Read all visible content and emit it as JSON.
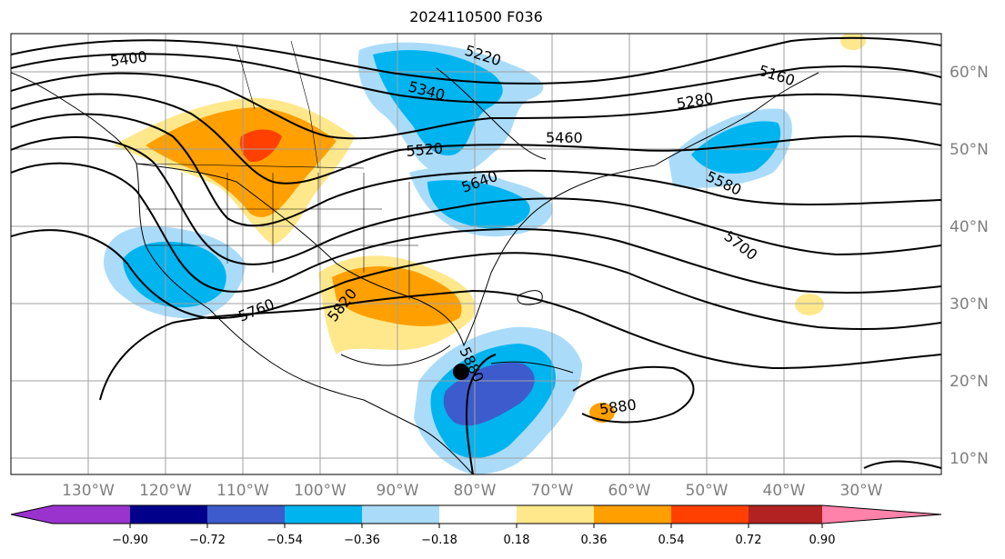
{
  "title": "2024110500 F036",
  "longitude_labels": [
    "130°W",
    "120°W",
    "110°W",
    "100°W",
    "90°W",
    "80°W",
    "70°W",
    "60°W",
    "50°W",
    "40°W",
    "30°W"
  ],
  "latitude_labels": [
    "60°N",
    "50°N",
    "40°N",
    "30°N",
    "20°N",
    "10°N"
  ],
  "contour_labels": [
    "5400",
    "5220",
    "5160",
    "5340",
    "5280",
    "5520",
    "5460",
    "5640",
    "5580",
    "5700",
    "5760",
    "5820",
    "5880",
    "5880"
  ],
  "colorbar": {
    "ticks": [
      "−0.90",
      "−0.72",
      "−0.54",
      "−0.36",
      "−0.18",
      "0.18",
      "0.36",
      "0.54",
      "0.72",
      "0.90"
    ],
    "colors": [
      "#9a32cd",
      "#00008b",
      "#3d5bcc",
      "#00b4f0",
      "#aadcfa",
      "#ffffff",
      "#ffe88c",
      "#ffa000",
      "#ff4000",
      "#b22222",
      "#ff82ab"
    ]
  },
  "marker": "storm-center-dot"
}
